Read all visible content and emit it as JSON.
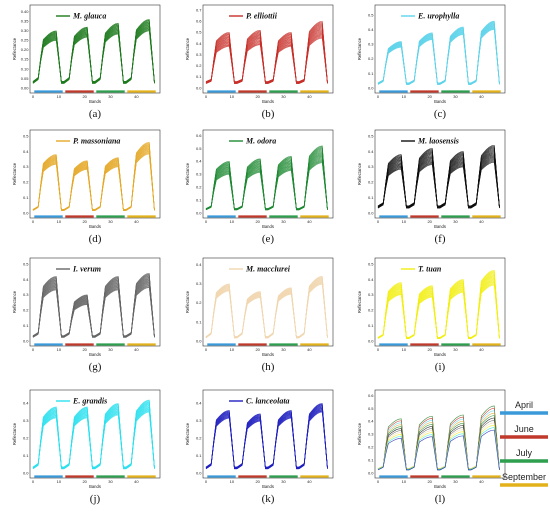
{
  "legend": {
    "items": [
      {
        "label": "April",
        "color": "#3a9ad9"
      },
      {
        "label": "June",
        "color": "#c0392b"
      },
      {
        "label": "July",
        "color": "#2e9e4f"
      },
      {
        "label": "September",
        "color": "#e3b21b"
      }
    ]
  },
  "chart_data": [
    {
      "type": "line",
      "caption": "(a)",
      "species": "M. glauca",
      "color": "#1d7a1d",
      "ylabel": "Reflectance",
      "xlabel": "Bands",
      "ylim": [
        0,
        0.42
      ],
      "yticks": [
        "0.00",
        "0.05",
        "0.10",
        "0.15",
        "0.20",
        "0.25",
        "0.30",
        "0.35",
        "0.40"
      ],
      "xticks": [
        "0",
        "10",
        "20",
        "30",
        "40"
      ],
      "x": [
        1,
        2,
        3,
        4,
        5,
        6,
        7,
        8,
        9,
        10,
        11,
        12,
        13,
        14,
        15,
        16,
        17,
        18,
        19,
        20,
        21,
        22,
        23,
        24,
        25,
        26,
        27,
        28,
        29,
        30,
        31,
        32,
        33,
        34,
        35,
        36,
        37,
        38,
        39,
        40,
        41,
        42,
        43,
        44,
        45,
        46,
        47,
        48
      ],
      "peaks": [
        0.3,
        0.32,
        0.34,
        0.36
      ],
      "spread": 0.08,
      "base": 0.03,
      "lines": 20
    },
    {
      "type": "line",
      "caption": "(b)",
      "species": "P. elliottii",
      "color": "#c8302a",
      "ylabel": "Reflectance",
      "xlabel": "Bands",
      "ylim": [
        0,
        0.72
      ],
      "yticks": [
        "0.0",
        "0.1",
        "0.2",
        "0.3",
        "0.4",
        "0.5",
        "0.6",
        "0.7"
      ],
      "xticks": [
        "0",
        "10",
        "20",
        "30",
        "40"
      ],
      "peaks": [
        0.5,
        0.52,
        0.5,
        0.6
      ],
      "spread": 0.12,
      "base": 0.05,
      "lines": 20
    },
    {
      "type": "line",
      "caption": "(c)",
      "species": "E. urophylla",
      "color": "#5fd3ea",
      "ylabel": "Reflectance",
      "xlabel": "Bands",
      "ylim": [
        0,
        0.55
      ],
      "yticks": [
        "0.0",
        "0.1",
        "0.2",
        "0.3",
        "0.4",
        "0.5"
      ],
      "xticks": [
        "0",
        "10",
        "20",
        "30",
        "40"
      ],
      "peaks": [
        0.32,
        0.38,
        0.42,
        0.46
      ],
      "spread": 0.06,
      "base": 0.03,
      "lines": 20
    },
    {
      "type": "line",
      "caption": "(d)",
      "species": "P. massoniana",
      "color": "#e5a92a",
      "ylabel": "Reflectance",
      "xlabel": "Bands",
      "ylim": [
        0,
        0.52
      ],
      "yticks": [
        "0.0",
        "0.1",
        "0.2",
        "0.3",
        "0.4",
        "0.5"
      ],
      "xticks": [
        "0",
        "10",
        "20",
        "30",
        "40"
      ],
      "peaks": [
        0.38,
        0.34,
        0.36,
        0.46
      ],
      "spread": 0.08,
      "base": 0.02,
      "lines": 20
    },
    {
      "type": "line",
      "caption": "(e)",
      "species": "M. odora",
      "color": "#1f8a32",
      "ylabel": "Reflectance",
      "xlabel": "Bands",
      "ylim": [
        0,
        0.62
      ],
      "yticks": [
        "0.0",
        "0.1",
        "0.2",
        "0.3",
        "0.4",
        "0.5",
        "0.6"
      ],
      "xticks": [
        "0",
        "10",
        "20",
        "30",
        "40"
      ],
      "peaks": [
        0.4,
        0.42,
        0.44,
        0.52
      ],
      "spread": 0.12,
      "base": 0.03,
      "lines": 20
    },
    {
      "type": "line",
      "caption": "(f)",
      "species": "M. laosensis",
      "color": "#111111",
      "ylabel": "Reflectance",
      "xlabel": "Bands",
      "ylim": [
        0,
        0.52
      ],
      "yticks": [
        "0.0",
        "0.1",
        "0.2",
        "0.3",
        "0.4",
        "0.5"
      ],
      "xticks": [
        "0",
        "10",
        "20",
        "30",
        "40"
      ],
      "peaks": [
        0.38,
        0.42,
        0.4,
        0.44
      ],
      "spread": 0.12,
      "base": 0.04,
      "lines": 20
    },
    {
      "type": "line",
      "caption": "(g)",
      "species": "I. verum",
      "color": "#666666",
      "ylabel": "Reflectance",
      "xlabel": "Bands",
      "ylim": [
        0,
        0.52
      ],
      "yticks": [
        "0.0",
        "0.1",
        "0.2",
        "0.3",
        "0.4",
        "0.5"
      ],
      "xticks": [
        "0",
        "10",
        "20",
        "30",
        "40"
      ],
      "peaks": [
        0.42,
        0.3,
        0.42,
        0.44
      ],
      "spread": 0.1,
      "base": 0.03,
      "lines": 24
    },
    {
      "type": "line",
      "caption": "(h)",
      "species": "M. macclurei",
      "color": "#f1d7b0",
      "ylabel": "Reflectance",
      "xlabel": "Bands",
      "ylim": [
        0,
        0.42
      ],
      "yticks": [
        "0.0",
        "0.1",
        "0.2",
        "0.3",
        "0.4"
      ],
      "xticks": [
        "0",
        "10",
        "20",
        "30",
        "40"
      ],
      "peaks": [
        0.3,
        0.26,
        0.28,
        0.34
      ],
      "spread": 0.06,
      "base": 0.02,
      "lines": 20
    },
    {
      "type": "line",
      "caption": "(i)",
      "species": "T. tuan",
      "color": "#f2ee12",
      "ylabel": "Reflectance",
      "xlabel": "Bands",
      "ylim": [
        0,
        0.52
      ],
      "yticks": [
        "0.0",
        "0.1",
        "0.2",
        "0.3",
        "0.4",
        "0.5"
      ],
      "xticks": [
        "0",
        "10",
        "20",
        "30",
        "40"
      ],
      "peaks": [
        0.38,
        0.36,
        0.4,
        0.46
      ],
      "spread": 0.1,
      "base": 0.02,
      "lines": 20
    },
    {
      "type": "line",
      "caption": "(j)",
      "species": "E. grandis",
      "color": "#2ee0ee",
      "ylabel": "Reflectance",
      "xlabel": "Bands",
      "ylim": [
        0,
        0.46
      ],
      "yticks": [
        "0.0",
        "0.1",
        "0.2",
        "0.3",
        "0.4"
      ],
      "xticks": [
        "0",
        "10",
        "20",
        "30",
        "40"
      ],
      "peaks": [
        0.38,
        0.38,
        0.4,
        0.42
      ],
      "spread": 0.08,
      "base": 0.03,
      "lines": 20
    },
    {
      "type": "line",
      "caption": "(k)",
      "species": "C. lanceolata",
      "color": "#2020c0",
      "ylabel": "Reflectance",
      "xlabel": "Bands",
      "ylim": [
        0,
        0.46
      ],
      "yticks": [
        "0.0",
        "0.1",
        "0.2",
        "0.3",
        "0.4"
      ],
      "xticks": [
        "0",
        "10",
        "20",
        "30",
        "40"
      ],
      "peaks": [
        0.36,
        0.34,
        0.36,
        0.4
      ],
      "spread": 0.06,
      "base": 0.03,
      "lines": 16
    },
    {
      "type": "line",
      "caption": "(l)",
      "species": "",
      "color": "mixed",
      "ylabel": "Reflectance",
      "xlabel": "Bands",
      "ylim": [
        0,
        0.62
      ],
      "yticks": [
        "0.0",
        "0.1",
        "0.2",
        "0.3",
        "0.4",
        "0.5",
        "0.6"
      ],
      "xticks": [
        "0",
        "10",
        "20",
        "30",
        "40"
      ],
      "peaks": [
        0.42,
        0.44,
        0.45,
        0.52
      ],
      "spread": 0.18,
      "base": 0.03,
      "lines": 11,
      "mixed_colors": [
        "#1d7a1d",
        "#c8302a",
        "#5fd3ea",
        "#e5a92a",
        "#1f8a32",
        "#111111",
        "#666666",
        "#f1d7b0",
        "#f2ee12",
        "#2ee0ee",
        "#2020c0"
      ]
    }
  ]
}
